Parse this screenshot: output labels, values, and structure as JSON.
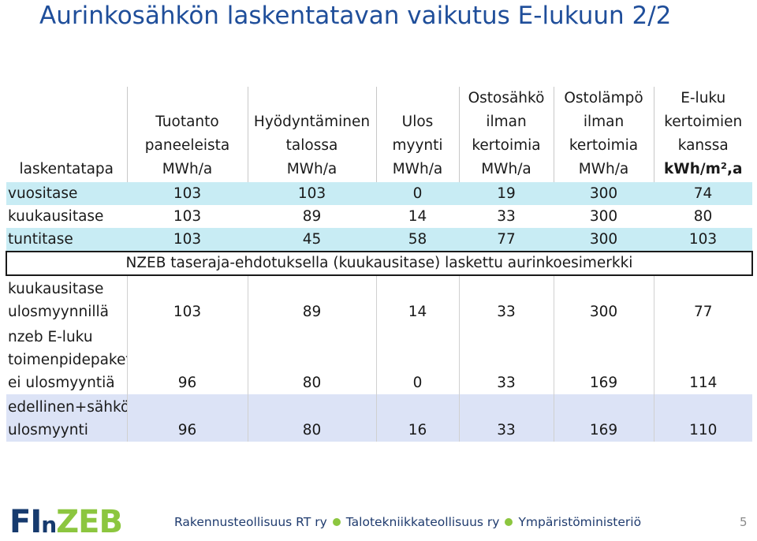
{
  "title": "Aurinkosähkön laskentatavan vaikutus E-lukuun 2/2",
  "table": {
    "headers": [
      [
        "laskentatapa"
      ],
      [
        "Tuotanto",
        "paneeleista",
        "MWh/a"
      ],
      [
        "Hyödyntäminen",
        "talossa",
        "MWh/a"
      ],
      [
        "Ulos",
        "myynti",
        "MWh/a"
      ],
      [
        "Ostosähkö",
        "ilman",
        "kertoimia",
        "MWh/a"
      ],
      [
        "Ostolämpö",
        "ilman",
        "kertoimia",
        "MWh/a"
      ],
      [
        "E-luku",
        "kertoimien",
        "kanssa",
        "kWh/m²,a"
      ]
    ],
    "rows": [
      {
        "label": [
          "vuositase"
        ],
        "values": [
          "103",
          "103",
          "0",
          "19",
          "300",
          "74"
        ]
      },
      {
        "label": [
          "kuukausitase"
        ],
        "values": [
          "103",
          "89",
          "14",
          "33",
          "300",
          "80"
        ]
      },
      {
        "label": [
          "tuntitase"
        ],
        "values": [
          "103",
          "45",
          "58",
          "77",
          "300",
          "103"
        ]
      }
    ],
    "note": "NZEB taseraja-ehdotuksella (kuukausitase) laskettu aurinkoesimerkki",
    "rows2": [
      {
        "label": [
          "kuukausitase",
          "ulosmyynnillä"
        ],
        "values": [
          "103",
          "89",
          "14",
          "33",
          "300",
          "77"
        ]
      },
      {
        "label": [
          "nzeb E-luku",
          "toimenpidepaketti",
          "ei ulosmyyntiä"
        ],
        "values": [
          "96",
          "80",
          "0",
          "33",
          "169",
          "114"
        ]
      },
      {
        "label": [
          "edellinen+sähkön",
          "ulosmyynti"
        ],
        "values": [
          "96",
          "80",
          "16",
          "33",
          "169",
          "110"
        ]
      }
    ]
  },
  "footer": {
    "logo": {
      "part1": "FI",
      "part2": "n",
      "part3": "ZEB"
    },
    "partners": [
      "Rakennusteollisuus RT ry",
      "Talotekniikkateollisuus ry",
      "Ympäristöministeriö"
    ],
    "page_number": "5"
  },
  "colors": {
    "title": "#1f4e9a",
    "row_highlight": "#c8ecf4",
    "lower_rows": "#dce3f6",
    "logo_dark": "#163a6e",
    "logo_green": "#8cc63f"
  }
}
